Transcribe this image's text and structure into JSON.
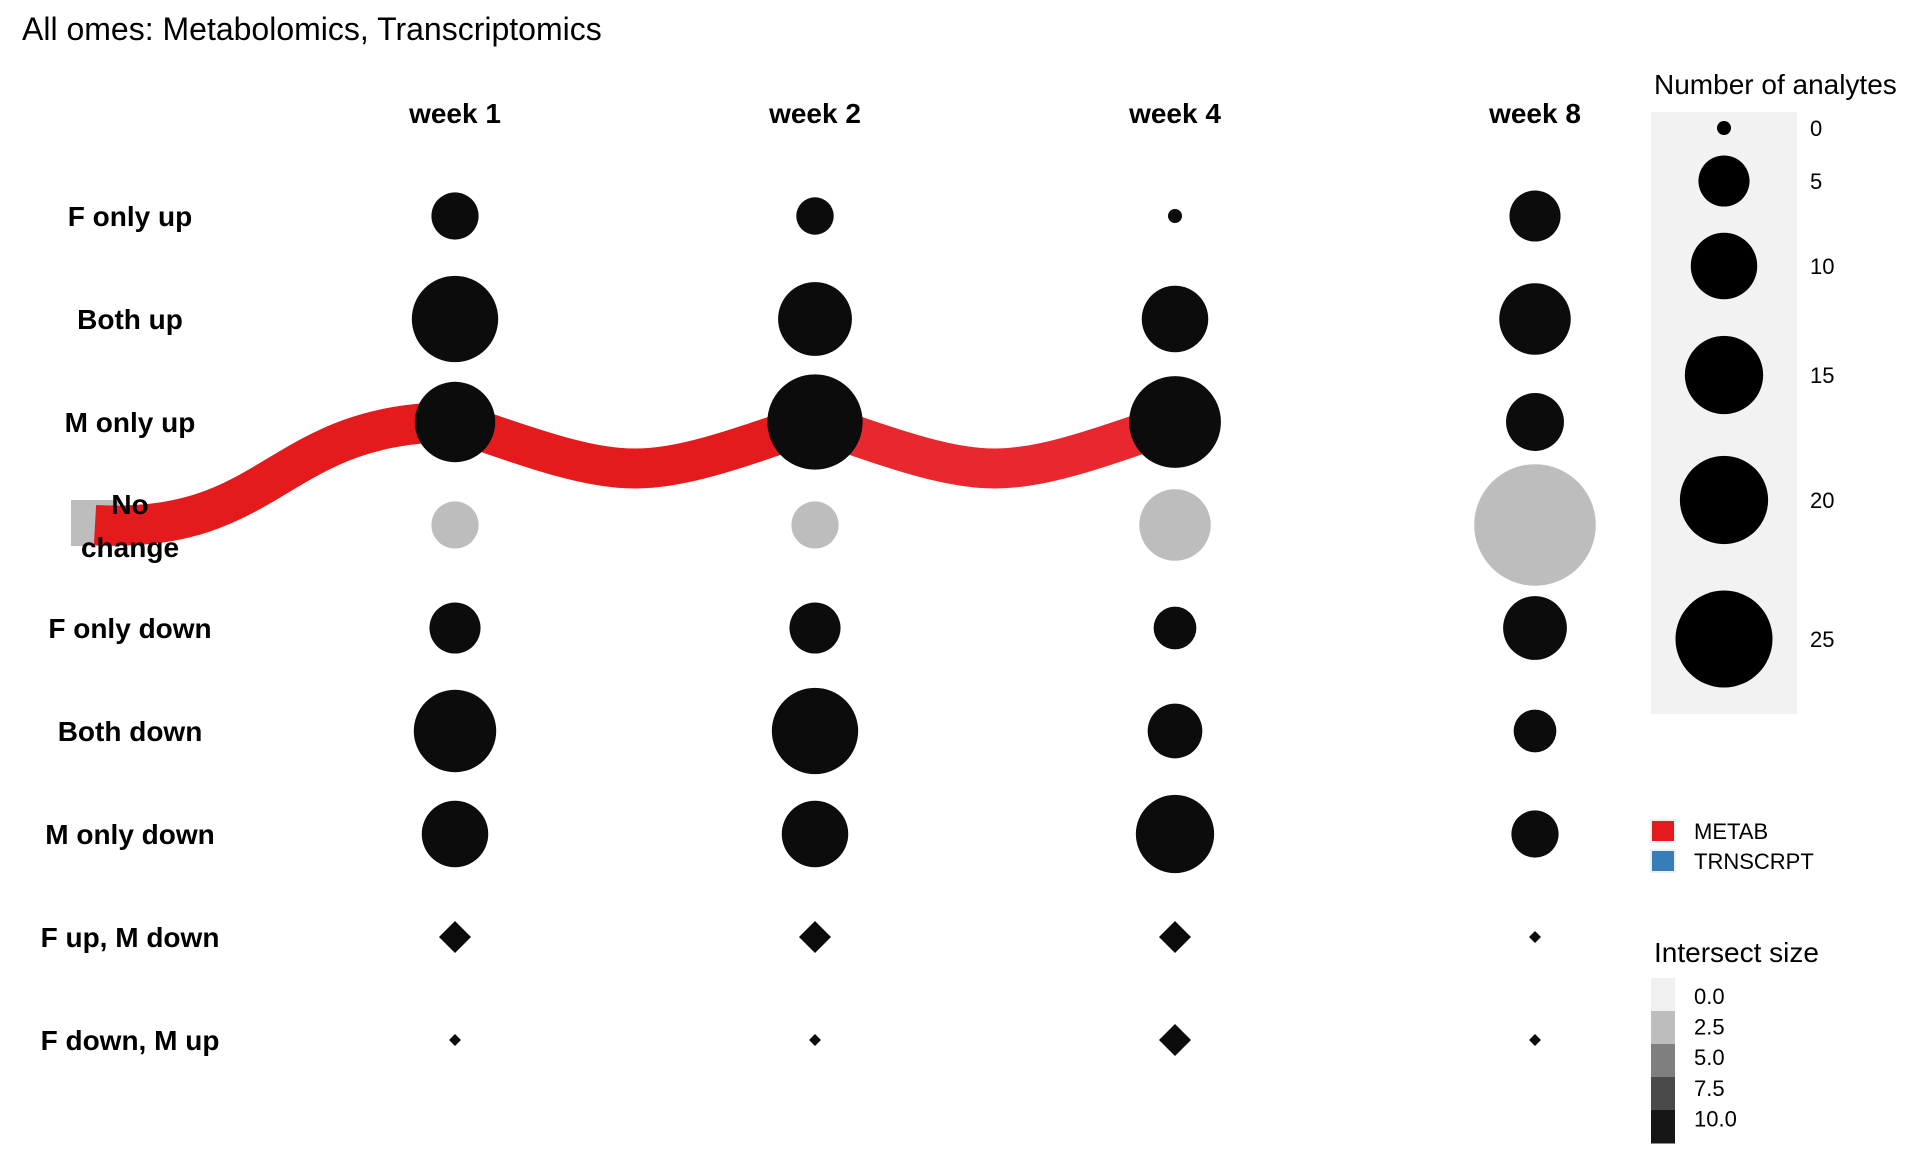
{
  "chart_data": {
    "type": "bubble-flow",
    "title": "All omes: Metabolomics, Transcriptomics",
    "columns": [
      "week 1",
      "week 2",
      "week 4",
      "week 8"
    ],
    "rows": [
      "F only up",
      "Both up",
      "M only up",
      "No change",
      "F only down",
      "Both down",
      "M only down",
      "F up, M down",
      "F down, M up"
    ],
    "row_label_lines": [
      [
        "F only up"
      ],
      [
        "Both up"
      ],
      [
        "M only up"
      ],
      [
        "No",
        "change"
      ],
      [
        "F only down"
      ],
      [
        "Both down"
      ],
      [
        "M only down"
      ],
      [
        "F up, M down"
      ],
      [
        "F down, M up"
      ]
    ],
    "bubbles": {
      "F only up": [
        4,
        2,
        0,
        5
      ],
      "Both up": [
        19,
        13,
        10,
        12
      ],
      "M only up": [
        16,
        24,
        22,
        7
      ],
      "No change": [
        4,
        4,
        12,
        42
      ],
      "F only down": [
        5,
        5,
        3,
        9
      ],
      "Both down": [
        17,
        19,
        6,
        3
      ],
      "M only down": [
        10,
        10,
        15,
        4
      ],
      "F up, M down": [
        1,
        1,
        1,
        0
      ],
      "F down, M up": [
        0,
        0,
        1,
        0
      ]
    },
    "bubble_color_value": {
      "No change": 2.5,
      "default": 10
    },
    "flows": [
      {
        "series": "METAB",
        "path": [
          "No change",
          "M only up",
          "M only up",
          "M only up"
        ],
        "weights": [
          6,
          6,
          6
        ],
        "colors": [
          "#e41a1c",
          "#e41a1c",
          "#e8282e"
        ]
      }
    ],
    "size_legend": {
      "title": "Number of analytes",
      "values": [
        0,
        5,
        10,
        15,
        20,
        25
      ]
    },
    "series_legend": [
      {
        "name": "METAB",
        "color": "#e41a1c"
      },
      {
        "name": "TRNSCRPT",
        "color": "#377eb8"
      }
    ],
    "intersect_legend": {
      "title": "Intersect size",
      "values": [
        "0.0",
        "2.5",
        "5.0",
        "7.5",
        "10.0"
      ],
      "colors": [
        "#f0f0f0",
        "#bdbdbd",
        "#7f7f7f",
        "#4a4a4a",
        "#161616"
      ]
    }
  }
}
